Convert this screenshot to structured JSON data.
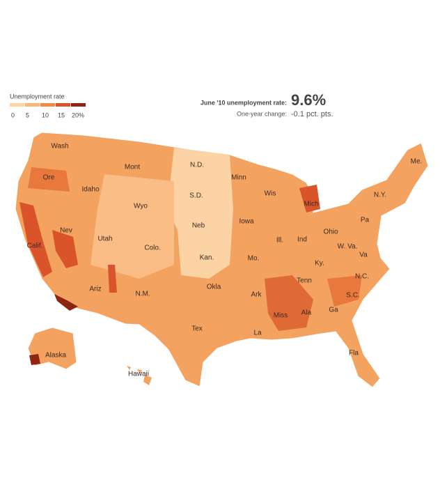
{
  "legend": {
    "title": "Unemployment rate",
    "ticks": [
      0,
      5,
      10,
      15,
      {
        "value": 20,
        "label": "20%"
      }
    ],
    "colors": [
      "#fdd3a4",
      "#fbb57a",
      "#f08a45",
      "#d9532b",
      "#8e2412"
    ]
  },
  "stats": {
    "rate_label": "June '10 unemployment rate:",
    "rate": "9.6%",
    "change_label": "One-year change:",
    "change": "-0.1 pct. pts."
  },
  "states": [
    "Wash",
    "Mont",
    "N.D.",
    "Minn",
    "Me.",
    "Ore",
    "Idaho",
    "Wyo",
    "S.D.",
    "Wis",
    "Mich",
    "N.Y.",
    "Nev",
    "Neb",
    "Iowa",
    "Pa",
    "Ohio",
    "Utah",
    "Colo.",
    "Ill.",
    "Ind",
    "W. Va.",
    "Calif.",
    "Kan.",
    "Mo.",
    "Va",
    "Ky.",
    "N.C.",
    "Tenn",
    "Okla",
    "Ariz",
    "S.C.",
    "N.M.",
    "Ark",
    "Ga",
    "Miss",
    "Ala",
    "Tex",
    "La",
    "Alaska",
    "Fla",
    "Hawaii"
  ]
}
